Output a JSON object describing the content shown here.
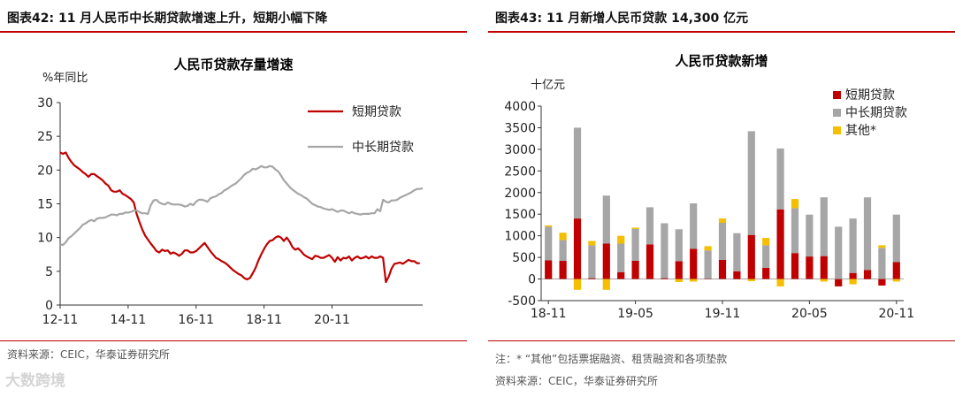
{
  "left": {
    "figure_title": "图表42:  11 月人民币中长期贷款增速上升，短期小幅下降",
    "source": "资料来源：CEIC，华泰证券研究所"
  },
  "right": {
    "figure_title": "图表43:  11 月新增人民币贷款 14,300 亿元",
    "note": "注：* “其他”包括票据融资、租赁融资和各项垫款",
    "source": "资料来源：CEIC，华泰证券研究所"
  },
  "watermark": "大数跨境",
  "colors": {
    "red": "#c00000",
    "grey": "#a6a6a6",
    "yellow": "#f5bf00",
    "rule": "#c00000"
  },
  "chart_data": [
    {
      "type": "line",
      "title": "人民币贷款存量增速",
      "ylabel": "%年同比",
      "ylim": [
        0,
        30
      ],
      "yticks": [
        "0",
        "5",
        "10",
        "15",
        "20",
        "25",
        "30"
      ],
      "xticks": [
        "12-11",
        "14-11",
        "16-11",
        "18-11",
        "20-11"
      ],
      "legend_position": "top-right",
      "series": [
        {
          "name": "短期贷款",
          "color": "#c00000",
          "x_start": "2012-11",
          "values": [
            22.6,
            22.4,
            22.6,
            21.8,
            21.2,
            20.7,
            20.4,
            20.1,
            19.7,
            19.4,
            19.0,
            19.4,
            19.4,
            19.1,
            18.8,
            18.5,
            18.0,
            17.7,
            17.0,
            16.8,
            16.8,
            17.0,
            16.5,
            16.3,
            16.0,
            15.7,
            15.2,
            13.5,
            12.3,
            11.2,
            10.3,
            9.7,
            9.1,
            8.6,
            8.0,
            7.8,
            8.2,
            8.0,
            8.1,
            7.6,
            7.8,
            7.6,
            7.3,
            7.6,
            8.1,
            8.1,
            7.8,
            7.8,
            8.0,
            8.4,
            8.8,
            9.2,
            8.6,
            8.0,
            7.5,
            7.0,
            6.8,
            6.5,
            6.3,
            6.0,
            5.6,
            5.2,
            4.9,
            4.6,
            4.4,
            4.0,
            3.8,
            4.0,
            4.7,
            5.5,
            6.6,
            7.5,
            8.3,
            9.0,
            9.5,
            9.6,
            10.0,
            10.2,
            10.0,
            9.5,
            10.0,
            9.4,
            8.6,
            8.2,
            8.4,
            8.0,
            7.5,
            7.2,
            7.0,
            6.8,
            7.3,
            7.2,
            7.0,
            7.0,
            7.2,
            7.4,
            7.0,
            6.4,
            7.1,
            6.6,
            7.0,
            6.9,
            7.2,
            6.6,
            7.0,
            7.2,
            6.9,
            7.0,
            7.2,
            6.9,
            7.2,
            7.0,
            7.0,
            7.2,
            7.0,
            3.4,
            4.2,
            5.4,
            6.1,
            6.2,
            6.3,
            6.1,
            6.4,
            6.7,
            6.5,
            6.5,
            6.2,
            6.2
          ]
        },
        {
          "name": "中长期贷款",
          "color": "#a6a6a6",
          "x_start": "2012-11",
          "values": [
            9.0,
            8.9,
            9.3,
            9.9,
            10.2,
            10.6,
            11.0,
            11.4,
            11.9,
            12.1,
            12.4,
            12.6,
            12.4,
            12.8,
            12.9,
            12.9,
            13.0,
            13.2,
            13.4,
            13.4,
            13.3,
            13.5,
            13.5,
            13.7,
            13.7,
            13.8,
            14.0,
            14.0,
            13.8,
            13.6,
            13.6,
            13.5,
            14.8,
            15.5,
            15.6,
            15.2,
            15.0,
            14.9,
            15.2,
            15.0,
            14.9,
            14.9,
            14.9,
            14.8,
            14.6,
            14.7,
            15.0,
            14.8,
            15.3,
            15.6,
            15.6,
            15.5,
            15.3,
            15.8,
            16.0,
            16.1,
            16.4,
            16.6,
            17.0,
            17.2,
            17.5,
            17.8,
            18.0,
            18.4,
            18.8,
            19.3,
            19.6,
            19.8,
            20.2,
            20.1,
            20.3,
            20.6,
            20.4,
            20.4,
            20.6,
            20.5,
            20.1,
            19.8,
            19.2,
            18.5,
            18.0,
            17.5,
            17.1,
            16.8,
            16.5,
            16.3,
            16.0,
            15.8,
            15.4,
            15.0,
            14.8,
            14.6,
            14.5,
            14.3,
            14.2,
            14.1,
            14.2,
            14.0,
            13.8,
            14.0,
            14.0,
            13.8,
            13.6,
            13.8,
            13.6,
            13.5,
            13.4,
            13.5,
            13.5,
            13.5,
            13.6,
            13.6,
            14.2,
            13.9,
            15.6,
            15.3,
            15.2,
            15.5,
            15.5,
            15.6,
            15.9,
            16.1,
            16.3,
            16.5,
            16.7,
            17.0,
            17.2,
            17.2,
            17.3
          ]
        }
      ]
    },
    {
      "type": "bar",
      "stacked": true,
      "title": "人民币贷款新增",
      "ylabel": "十亿元",
      "ylim": [
        -500,
        4000
      ],
      "yticks": [
        "-500",
        "0",
        "500",
        "1000",
        "1500",
        "2000",
        "2500",
        "3000",
        "3500",
        "4000"
      ],
      "xticks": [
        "18-11",
        "19-05",
        "19-11",
        "20-05",
        "20-11"
      ],
      "categories": [
        "2018-11",
        "2018-12",
        "2019-01",
        "2019-02",
        "2019-03",
        "2019-04",
        "2019-05",
        "2019-06",
        "2019-07",
        "2019-08",
        "2019-09",
        "2019-10",
        "2019-11",
        "2019-12",
        "2020-01",
        "2020-02",
        "2020-03",
        "2020-04",
        "2020-05",
        "2020-06",
        "2020-07",
        "2020-08",
        "2020-09",
        "2020-10",
        "2020-11"
      ],
      "legend_position": "top-right",
      "series": [
        {
          "name": "短期贷款",
          "color": "#c00000",
          "values": [
            430,
            420,
            1400,
            20,
            820,
            160,
            420,
            800,
            20,
            410,
            700,
            10,
            440,
            180,
            1020,
            260,
            1610,
            600,
            520,
            530,
            -170,
            140,
            210,
            -150,
            390
          ]
        },
        {
          "name": "中长期贷款",
          "color": "#a6a6a6",
          "values": [
            780,
            480,
            2100,
            760,
            1110,
            660,
            740,
            860,
            1270,
            740,
            1050,
            650,
            860,
            880,
            2400,
            520,
            1410,
            1040,
            970,
            1360,
            1210,
            1260,
            1680,
            720,
            1100
          ]
        },
        {
          "name": "其他*",
          "color": "#f5bf00",
          "values": [
            30,
            170,
            -250,
            100,
            -250,
            180,
            30,
            0,
            0,
            -70,
            -60,
            100,
            100,
            0,
            -50,
            170,
            -170,
            210,
            0,
            -60,
            0,
            -120,
            0,
            60,
            -60
          ]
        }
      ]
    }
  ]
}
